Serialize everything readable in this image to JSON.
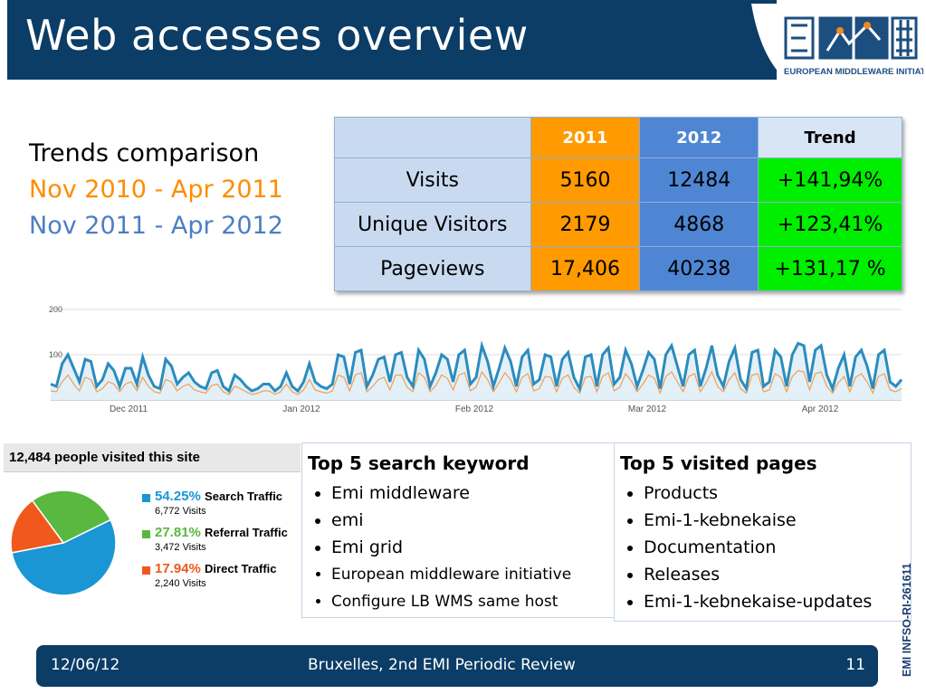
{
  "header": {
    "title": "Web accesses overview"
  },
  "logo": {
    "tagline": "EUROPEAN MIDDLEWARE INITIATIVE",
    "colors": {
      "blue": "#1c4e80",
      "orange": "#f08a1c"
    }
  },
  "trends": {
    "heading": "Trends comparison",
    "period1": "Nov 2010 - Apr 2011",
    "period2": "Nov 2011 - Apr 2012",
    "period1_color": "#ff8c00",
    "period2_color": "#4a7fc4"
  },
  "stats_table": {
    "headers": [
      "",
      "2011",
      "2012",
      "Trend"
    ],
    "rows": [
      {
        "label": "Visits",
        "y2011": "5160",
        "y2012": "12484",
        "trend": "+141,94%"
      },
      {
        "label": "Unique Visitors",
        "y2011": "2179",
        "y2012": "4868",
        "trend": "+123,41%"
      },
      {
        "label": "Pageviews",
        "y2011": "17,406",
        "y2012": "40238",
        "trend": "+131,17 %"
      }
    ]
  },
  "chart_data": [
    {
      "type": "line",
      "x_tick_labels": [
        "Dec 2011",
        "Jan 2012",
        "Feb 2012",
        "Mar 2012",
        "Apr 2012"
      ],
      "y_tick_labels": [
        "200",
        "100"
      ],
      "ylim": [
        0,
        200
      ],
      "series": [
        {
          "color": "#2b8cbe",
          "values": [
            35,
            30,
            80,
            100,
            70,
            40,
            90,
            85,
            30,
            45,
            80,
            65,
            30,
            70,
            70,
            35,
            95,
            55,
            30,
            25,
            90,
            75,
            35,
            50,
            60,
            40,
            30,
            25,
            60,
            65,
            30,
            20,
            55,
            45,
            30,
            20,
            25,
            35,
            35,
            20,
            30,
            60,
            30,
            20,
            40,
            80,
            40,
            30,
            25,
            35,
            100,
            95,
            35,
            105,
            110,
            30,
            55,
            90,
            95,
            40,
            100,
            105,
            50,
            30,
            110,
            90,
            30,
            60,
            100,
            90,
            40,
            100,
            110,
            35,
            50,
            120,
            85,
            30,
            70,
            115,
            85,
            30,
            95,
            110,
            35,
            45,
            100,
            95,
            30,
            90,
            105,
            50,
            25,
            95,
            100,
            30,
            100,
            115,
            35,
            50,
            110,
            80,
            30,
            65,
            105,
            90,
            25,
            100,
            120,
            75,
            30,
            100,
            110,
            30,
            70,
            120,
            55,
            30,
            85,
            115,
            45,
            25,
            105,
            110,
            30,
            40,
            110,
            95,
            30,
            100,
            125,
            120,
            40,
            110,
            120,
            55,
            25,
            70,
            100,
            30,
            95,
            110,
            75,
            25,
            100,
            110,
            40,
            30,
            45
          ]
        },
        {
          "color": "#f0a050",
          "values": [
            20,
            18,
            40,
            55,
            35,
            20,
            50,
            45,
            18,
            25,
            40,
            35,
            18,
            35,
            40,
            20,
            50,
            30,
            18,
            15,
            45,
            40,
            20,
            30,
            35,
            22,
            18,
            15,
            32,
            35,
            18,
            12,
            30,
            25,
            18,
            12,
            15,
            20,
            20,
            12,
            18,
            35,
            18,
            12,
            22,
            45,
            22,
            18,
            15,
            20,
            55,
            50,
            20,
            55,
            60,
            18,
            30,
            45,
            50,
            22,
            55,
            55,
            28,
            18,
            60,
            50,
            18,
            32,
            55,
            48,
            22,
            55,
            60,
            20,
            28,
            62,
            45,
            18,
            38,
            60,
            45,
            18,
            50,
            58,
            20,
            25,
            52,
            50,
            18,
            48,
            55,
            28,
            15,
            50,
            52,
            18,
            52,
            60,
            20,
            28,
            58,
            42,
            18,
            35,
            55,
            48,
            15,
            52,
            62,
            40,
            18,
            52,
            58,
            18,
            38,
            62,
            30,
            18,
            45,
            60,
            25,
            15,
            55,
            58,
            18,
            22,
            58,
            50,
            18,
            52,
            65,
            62,
            22,
            58,
            62,
            30,
            15,
            38,
            52,
            18,
            50,
            58,
            40,
            15,
            52,
            58,
            22,
            18,
            25
          ]
        }
      ]
    },
    {
      "type": "pie",
      "title": "12,484 people visited this site",
      "slices": [
        {
          "pct": "54.25%",
          "label": "Search Traffic",
          "sub": "6,772 Visits",
          "value": 54.25,
          "color": "#1a96d4"
        },
        {
          "pct": "27.81%",
          "label": "Referral Traffic",
          "sub": "3,472 Visits",
          "value": 27.81,
          "color": "#58b840"
        },
        {
          "pct": "17.94%",
          "label": "Direct Traffic",
          "sub": "2,240 Visits",
          "value": 17.94,
          "color": "#f0581c"
        }
      ]
    }
  ],
  "keywords": {
    "title": "Top 5 search keyword",
    "items": [
      "Emi middleware",
      "emi",
      "Emi grid",
      "European middleware initiative",
      "Configure LB WMS same host"
    ]
  },
  "pages": {
    "title": "Top 5 visited pages",
    "items": [
      "Products",
      "Emi-1-kebnekaise",
      "Documentation",
      "Releases",
      "Emi-1-kebnekaise-updates"
    ]
  },
  "doc_id": "EMI INFSO-RI-261611",
  "footer": {
    "date": "12/06/12",
    "event": "Bruxelles, 2nd EMI Periodic Review",
    "page": "11"
  }
}
